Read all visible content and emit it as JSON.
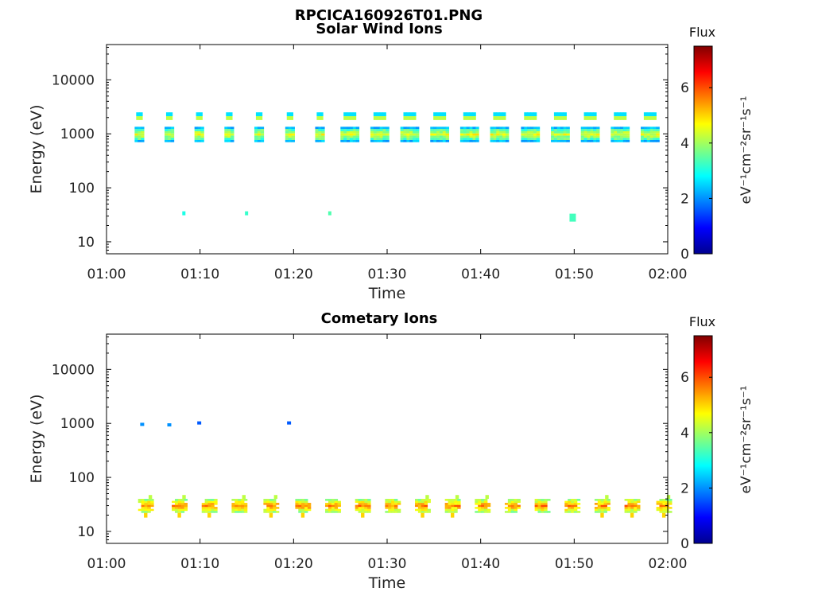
{
  "figure": {
    "title": "RPCICA160926T01.PNG"
  },
  "colormap": [
    "#00008f",
    "#0000ff",
    "#0080ff",
    "#00ffff",
    "#80ff80",
    "#ffff00",
    "#ff8000",
    "#ff0000",
    "#800000"
  ],
  "chart_data": [
    {
      "type": "heatmap",
      "title": "Solar Wind Ions",
      "xlabel": "Time",
      "ylabel": "Energy (eV)",
      "yscale": "log",
      "xlim": [
        "01:00",
        "02:00"
      ],
      "ylim": [
        6,
        45000
      ],
      "x_ticks": [
        "01:00",
        "01:10",
        "01:20",
        "01:30",
        "01:40",
        "01:50",
        "02:00"
      ],
      "y_ticks": [
        "10",
        "100",
        "1000",
        "10000"
      ],
      "colorbar": {
        "label_top": "Flux",
        "unit": "eV⁻¹cm⁻²sr⁻¹s⁻¹",
        "range": [
          0,
          7.5
        ],
        "ticks": [
          "0",
          "2",
          "4",
          "6"
        ]
      },
      "burst_times": [
        "01:03.5",
        "01:06.7",
        "01:09.9",
        "01:13.1",
        "01:16.3",
        "01:19.6",
        "01:22.8",
        "01:26.0",
        "01:29.2",
        "01:32.4",
        "01:35.6",
        "01:38.8",
        "01:42.0",
        "01:45.3",
        "01:48.5",
        "01:51.7",
        "01:54.9",
        "01:58.1"
      ],
      "core_energy_eV": [
        700,
        1350
      ],
      "core_flux": 4.5,
      "upper_band_energy_eV": [
        1800,
        2500
      ],
      "upper_band_flux": 2.6,
      "isolated_points": [
        {
          "time": "01:08.1",
          "energy_eV": 31,
          "flux": 3.0
        },
        {
          "time": "01:14.8",
          "energy_eV": 31,
          "flux": 3.2
        },
        {
          "time": "01:23.7",
          "energy_eV": 31,
          "flux": 3.4
        },
        {
          "time": "01:49.5",
          "energy_eV": 28,
          "flux": 3.3
        }
      ]
    },
    {
      "type": "heatmap",
      "title": "Cometary Ions",
      "xlabel": "Time",
      "ylabel": "Energy (eV)",
      "yscale": "log",
      "xlim": [
        "01:00",
        "02:00"
      ],
      "ylim": [
        6,
        45000
      ],
      "x_ticks": [
        "01:00",
        "01:10",
        "01:20",
        "01:30",
        "01:40",
        "01:50",
        "02:00"
      ],
      "y_ticks": [
        "10",
        "100",
        "1000",
        "10000"
      ],
      "colorbar": {
        "label_top": "Flux",
        "unit": "eV⁻¹cm⁻²sr⁻¹s⁻¹",
        "range": [
          0,
          7.5
        ],
        "ticks": [
          "0",
          "2",
          "4",
          "6"
        ]
      },
      "burst_times": [
        "01:04.2",
        "01:07.8",
        "01:11.0",
        "01:14.2",
        "01:17.6",
        "01:21.0",
        "01:24.2",
        "01:27.4",
        "01:30.6",
        "01:33.8",
        "01:37.0",
        "01:40.2",
        "01:43.4",
        "01:46.6",
        "01:49.8",
        "01:53.0",
        "01:56.2",
        "01:59.6"
      ],
      "core_energy_eV": [
        22,
        40
      ],
      "core_flux": 5.6,
      "high_energy_points": [
        {
          "time": "01:03.6",
          "energy_eV": 960,
          "flux": 2.0
        },
        {
          "time": "01:06.5",
          "energy_eV": 940,
          "flux": 2.0
        },
        {
          "time": "01:09.7",
          "energy_eV": 1020,
          "flux": 1.6
        },
        {
          "time": "01:19.3",
          "energy_eV": 1020,
          "flux": 1.6
        }
      ]
    }
  ]
}
